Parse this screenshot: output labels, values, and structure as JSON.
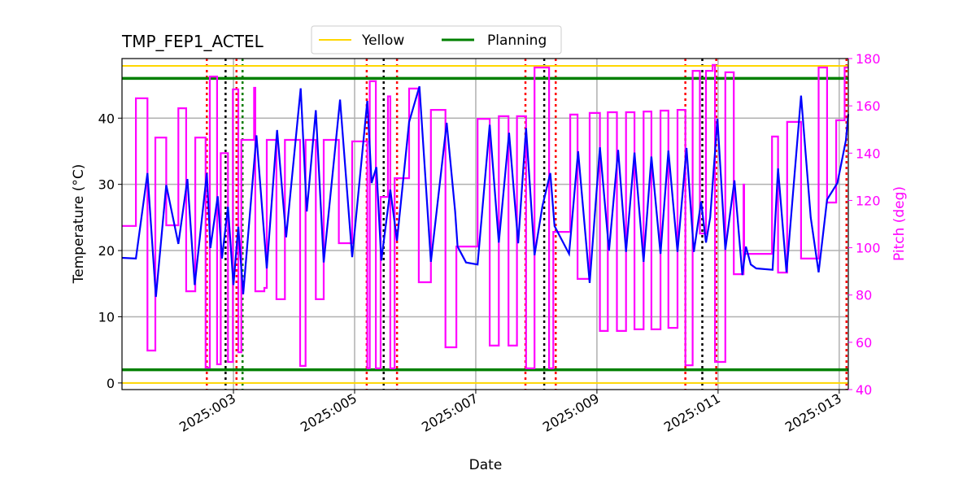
{
  "chart_data": {
    "type": "line",
    "title": "TMP_FEP1_ACTEL",
    "xlabel": "Date",
    "ylabel": "Temperature ($^\\circ$C)",
    "ylabel_display": "Temperature (°C)",
    "y2label": "Pitch (deg)",
    "xlim": [
      1.16,
      13.15
    ],
    "ylim": [
      -1,
      49
    ],
    "y2lim": [
      40,
      180
    ],
    "x_ticks": [
      3,
      5,
      7,
      9,
      11,
      13
    ],
    "x_tick_labels": [
      "2025:003",
      "2025:005",
      "2025:007",
      "2025:009",
      "2025:011",
      "2025:013"
    ],
    "y_ticks": [
      0,
      10,
      20,
      30,
      40
    ],
    "y2_ticks": [
      40,
      60,
      80,
      100,
      120,
      140,
      160,
      180
    ],
    "grid": true,
    "legend": {
      "placement": "top-center",
      "entries": [
        "Yellow",
        "Planning"
      ]
    },
    "colors": {
      "temperature": "#0000ff",
      "pitch": "#ff00ff",
      "yellow": "#ffd700",
      "planning": "#008000",
      "red_marker": "#ff0000",
      "black_marker": "#000000",
      "grid": "#b0b0b0"
    },
    "limits": [
      {
        "name": "Yellow",
        "values": [
          47.9,
          0
        ],
        "color": "#ffd700"
      },
      {
        "name": "Planning",
        "values": [
          46,
          2
        ],
        "color": "#008000"
      }
    ],
    "temperature": [
      [
        1.16,
        18.9
      ],
      [
        1.39,
        18.8
      ],
      [
        1.58,
        31.7
      ],
      [
        1.72,
        13.0
      ],
      [
        1.89,
        29.9
      ],
      [
        2.09,
        21.0
      ],
      [
        2.24,
        30.8
      ],
      [
        2.36,
        14.8
      ],
      [
        2.56,
        31.7
      ],
      [
        2.62,
        20.4
      ],
      [
        2.74,
        28.2
      ],
      [
        2.81,
        18.8
      ],
      [
        2.91,
        26.6
      ],
      [
        3.0,
        14.8
      ],
      [
        3.08,
        23.6
      ],
      [
        3.16,
        13.4
      ],
      [
        3.38,
        37.4
      ],
      [
        3.55,
        17.3
      ],
      [
        3.72,
        38.2
      ],
      [
        3.87,
        22.0
      ],
      [
        4.11,
        44.5
      ],
      [
        4.21,
        25.9
      ],
      [
        4.36,
        41.2
      ],
      [
        4.49,
        18.2
      ],
      [
        4.76,
        42.8
      ],
      [
        4.96,
        19.0
      ],
      [
        5.21,
        42.6
      ],
      [
        5.28,
        30.2
      ],
      [
        5.36,
        32.6
      ],
      [
        5.44,
        18.5
      ],
      [
        5.59,
        29.2
      ],
      [
        5.7,
        21.5
      ],
      [
        5.9,
        39.4
      ],
      [
        6.07,
        44.8
      ],
      [
        6.26,
        18.3
      ],
      [
        6.52,
        39.3
      ],
      [
        6.66,
        25.9
      ],
      [
        6.7,
        20.6
      ],
      [
        6.84,
        18.2
      ],
      [
        7.03,
        17.9
      ],
      [
        7.23,
        39.0
      ],
      [
        7.38,
        21.2
      ],
      [
        7.55,
        37.8
      ],
      [
        7.7,
        21.1
      ],
      [
        7.83,
        38.5
      ],
      [
        7.97,
        19.3
      ],
      [
        8.1,
        26.7
      ],
      [
        8.23,
        31.7
      ],
      [
        8.3,
        23.7
      ],
      [
        8.54,
        19.5
      ],
      [
        8.69,
        35.0
      ],
      [
        8.88,
        15.1
      ],
      [
        9.05,
        35.6
      ],
      [
        9.2,
        20.0
      ],
      [
        9.35,
        35.2
      ],
      [
        9.48,
        19.8
      ],
      [
        9.62,
        34.8
      ],
      [
        9.77,
        18.3
      ],
      [
        9.9,
        34.2
      ],
      [
        10.05,
        19.5
      ],
      [
        10.18,
        35.1
      ],
      [
        10.33,
        19.8
      ],
      [
        10.48,
        35.5
      ],
      [
        10.6,
        19.8
      ],
      [
        10.72,
        27.4
      ],
      [
        10.8,
        21.2
      ],
      [
        10.87,
        25.0
      ],
      [
        10.99,
        39.9
      ],
      [
        11.12,
        20.1
      ],
      [
        11.27,
        30.6
      ],
      [
        11.4,
        16.3
      ],
      [
        11.46,
        20.6
      ],
      [
        11.54,
        17.9
      ],
      [
        11.63,
        17.3
      ],
      [
        11.9,
        17.1
      ],
      [
        11.99,
        32.4
      ],
      [
        12.13,
        16.7
      ],
      [
        12.37,
        43.4
      ],
      [
        12.53,
        25.0
      ],
      [
        12.66,
        16.7
      ],
      [
        12.8,
        27.7
      ],
      [
        12.97,
        30.2
      ],
      [
        13.11,
        36.6
      ],
      [
        13.15,
        40.6
      ]
    ],
    "pitch": [
      [
        1.16,
        109.2
      ],
      [
        1.39,
        163.2
      ],
      [
        1.58,
        56.5
      ],
      [
        1.71,
        146.6
      ],
      [
        1.89,
        109.5
      ],
      [
        2.09,
        159.0
      ],
      [
        2.22,
        81.6
      ],
      [
        2.37,
        146.6
      ],
      [
        2.54,
        49.3
      ],
      [
        2.61,
        172.4
      ],
      [
        2.73,
        50.7
      ],
      [
        2.79,
        140.0
      ],
      [
        2.91,
        51.7
      ],
      [
        2.99,
        167.0
      ],
      [
        3.08,
        55.8
      ],
      [
        3.13,
        145.6
      ],
      [
        3.34,
        167.6
      ],
      [
        3.36,
        81.6
      ],
      [
        3.51,
        83.0
      ],
      [
        3.55,
        145.6
      ],
      [
        3.71,
        78.2
      ],
      [
        3.85,
        145.6
      ],
      [
        4.1,
        50.0
      ],
      [
        4.19,
        145.6
      ],
      [
        4.36,
        78.2
      ],
      [
        4.49,
        145.6
      ],
      [
        4.74,
        101.9
      ],
      [
        4.96,
        145.0
      ],
      [
        5.21,
        49.0
      ],
      [
        5.25,
        170.4
      ],
      [
        5.35,
        49.0
      ],
      [
        5.43,
        121.5
      ],
      [
        5.55,
        164.0
      ],
      [
        5.59,
        49.0
      ],
      [
        5.66,
        129.4
      ],
      [
        5.9,
        167.3
      ],
      [
        6.06,
        85.4
      ],
      [
        6.26,
        158.3
      ],
      [
        6.5,
        57.9
      ],
      [
        6.68,
        100.5
      ],
      [
        7.03,
        154.5
      ],
      [
        7.23,
        58.6
      ],
      [
        7.38,
        155.6
      ],
      [
        7.54,
        58.6
      ],
      [
        7.68,
        155.6
      ],
      [
        7.83,
        49.0
      ],
      [
        7.97,
        176.2
      ],
      [
        8.21,
        49.0
      ],
      [
        8.28,
        106.7
      ],
      [
        8.56,
        156.3
      ],
      [
        8.68,
        86.8
      ],
      [
        8.88,
        157.0
      ],
      [
        9.05,
        64.8
      ],
      [
        9.18,
        157.3
      ],
      [
        9.33,
        64.8
      ],
      [
        9.48,
        157.3
      ],
      [
        9.62,
        65.5
      ],
      [
        9.77,
        157.6
      ],
      [
        9.9,
        65.5
      ],
      [
        10.05,
        158.0
      ],
      [
        10.18,
        66.1
      ],
      [
        10.33,
        158.3
      ],
      [
        10.46,
        50.3
      ],
      [
        10.58,
        174.8
      ],
      [
        10.7,
        106.0
      ],
      [
        10.8,
        174.8
      ],
      [
        10.91,
        177.3
      ],
      [
        10.95,
        51.7
      ],
      [
        11.12,
        174.2
      ],
      [
        11.26,
        88.8
      ],
      [
        11.42,
        126.7
      ],
      [
        11.43,
        97.4
      ],
      [
        11.89,
        147.0
      ],
      [
        11.99,
        89.5
      ],
      [
        12.14,
        153.2
      ],
      [
        12.37,
        95.4
      ],
      [
        12.66,
        176.2
      ],
      [
        12.8,
        119.1
      ],
      [
        12.95,
        153.9
      ],
      [
        13.09,
        176.2
      ],
      [
        13.15,
        176.2
      ]
    ],
    "red_markers": [
      2.56,
      3.05,
      3.15,
      5.2,
      5.7,
      7.82,
      8.32,
      10.46,
      10.97,
      13.12
    ],
    "black_markers": [
      2.87,
      5.48,
      8.13,
      10.74
    ],
    "green_markers": [
      3.15
    ]
  }
}
